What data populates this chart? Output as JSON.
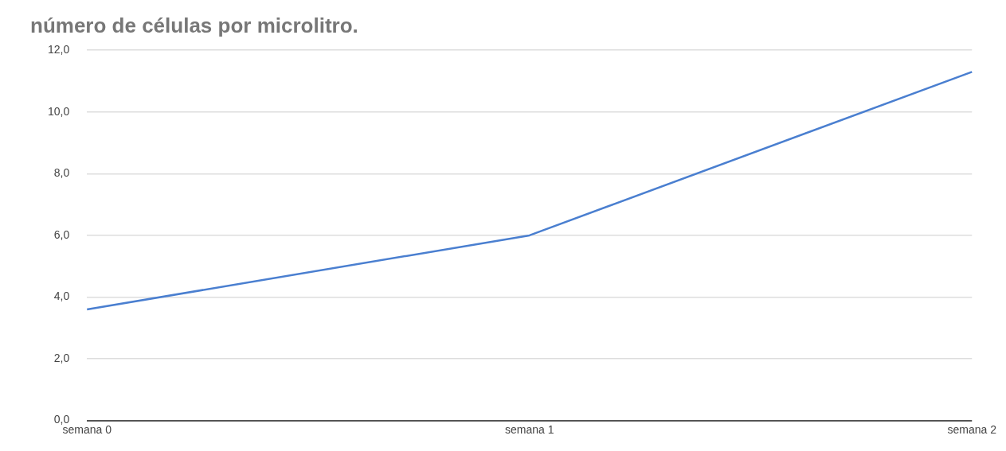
{
  "chart_data": {
    "type": "line",
    "title": "número de células por microlitro.",
    "categories": [
      "semana 0",
      "semana 1",
      "semana 2"
    ],
    "series": [
      {
        "color": "#4a7fd0",
        "values": [
          3.6,
          6.0,
          11.3
        ]
      }
    ],
    "ylim": [
      0,
      12
    ],
    "yticks": [
      {
        "value": 0,
        "label": "0,0"
      },
      {
        "value": 2,
        "label": "2,0"
      },
      {
        "value": 4,
        "label": "4,0"
      },
      {
        "value": 6,
        "label": "6,0"
      },
      {
        "value": 8,
        "label": "8,0"
      },
      {
        "value": 10,
        "label": "10,0"
      },
      {
        "value": 12,
        "label": "12,0"
      }
    ],
    "grid": "y",
    "legend": false,
    "marker": "none",
    "line_style": "solid"
  }
}
